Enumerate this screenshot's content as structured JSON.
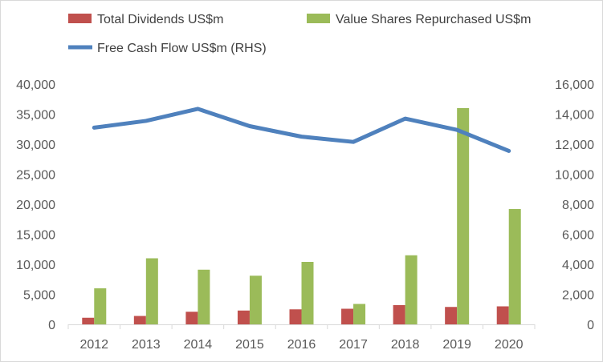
{
  "chart_data": {
    "type": "bar",
    "categories": [
      "2012",
      "2013",
      "2014",
      "2015",
      "2016",
      "2017",
      "2018",
      "2019",
      "2020"
    ],
    "series": [
      {
        "name": "Total Dividends US$m",
        "type": "bar",
        "axis": "left",
        "color": "#c0504d",
        "values": [
          1100,
          1400,
          2100,
          2300,
          2500,
          2600,
          3200,
          2900,
          3000
        ]
      },
      {
        "name": "Value Shares Repurchased US$m",
        "type": "bar",
        "axis": "left",
        "color": "#9bbb59",
        "values": [
          6000,
          11000,
          9100,
          8100,
          10400,
          3400,
          11500,
          36000,
          19200
        ]
      },
      {
        "name": "Free Cash Flow US$m (RHS)",
        "type": "line",
        "axis": "right",
        "color": "#4f81bd",
        "values": [
          13100,
          13550,
          14350,
          13200,
          12500,
          12150,
          13700,
          12950,
          11550
        ]
      }
    ],
    "y_left": {
      "lim": [
        0,
        40000
      ],
      "ticks": [
        "0",
        "5,000",
        "10,000",
        "15,000",
        "20,000",
        "25,000",
        "30,000",
        "35,000",
        "40,000"
      ],
      "tick_values": [
        0,
        5000,
        10000,
        15000,
        20000,
        25000,
        30000,
        35000,
        40000
      ]
    },
    "y_right": {
      "lim": [
        0,
        16000
      ],
      "ticks": [
        "0",
        "2,000",
        "4,000",
        "6,000",
        "8,000",
        "10,000",
        "12,000",
        "14,000",
        "16,000"
      ],
      "tick_values": [
        0,
        2000,
        4000,
        6000,
        8000,
        10000,
        12000,
        14000,
        16000
      ]
    },
    "legend": {
      "position": "top",
      "items": [
        {
          "label": "Total Dividends US$m",
          "color": "#c0504d",
          "marker": "square"
        },
        {
          "label": "Value Shares Repurchased US$m",
          "color": "#9bbb59",
          "marker": "square"
        },
        {
          "label": "Free Cash Flow US$m (RHS)",
          "color": "#4f81bd",
          "marker": "line"
        }
      ]
    },
    "grid": false
  }
}
